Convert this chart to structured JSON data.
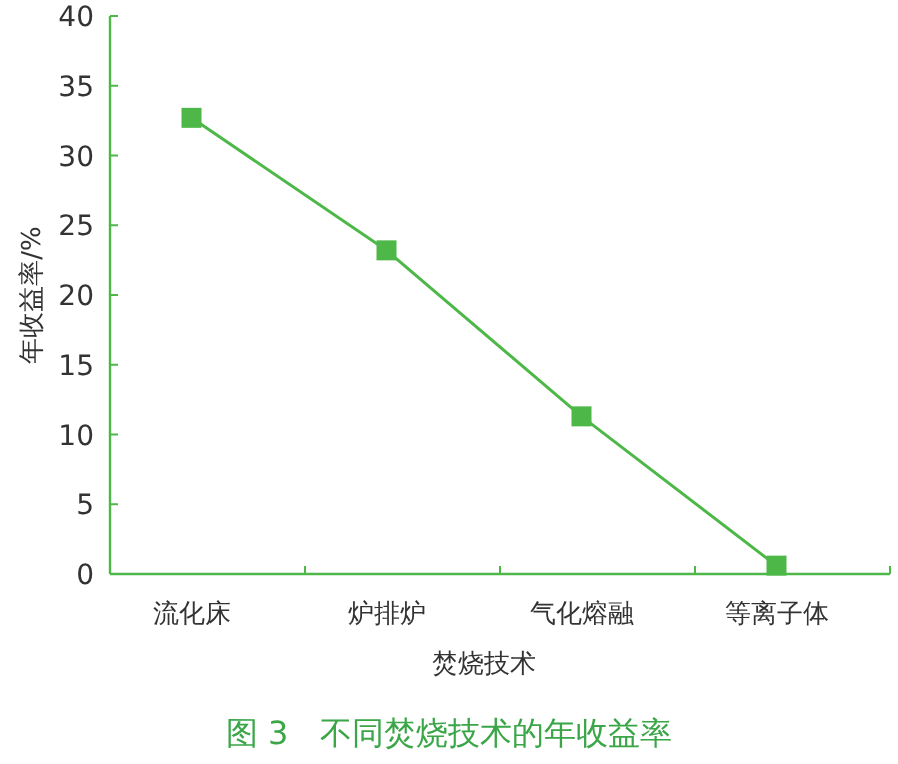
{
  "chart_data": {
    "type": "line",
    "title": "图 3　不同焚烧技术的年收益率",
    "xlabel": "焚烧技术",
    "ylabel": "年收益率/%",
    "categories": [
      "流化床",
      "炉排炉",
      "气化熔融",
      "等离子体"
    ],
    "series": [
      {
        "color": "#4db848",
        "values": [
          32.7,
          23.2,
          11.3,
          0.6
        ]
      }
    ],
    "ylim": [
      0,
      40
    ],
    "yticks": [
      0,
      5,
      10,
      15,
      20,
      25,
      30,
      35,
      40
    ],
    "marker": "square",
    "line_style": "solid",
    "grid": false
  }
}
